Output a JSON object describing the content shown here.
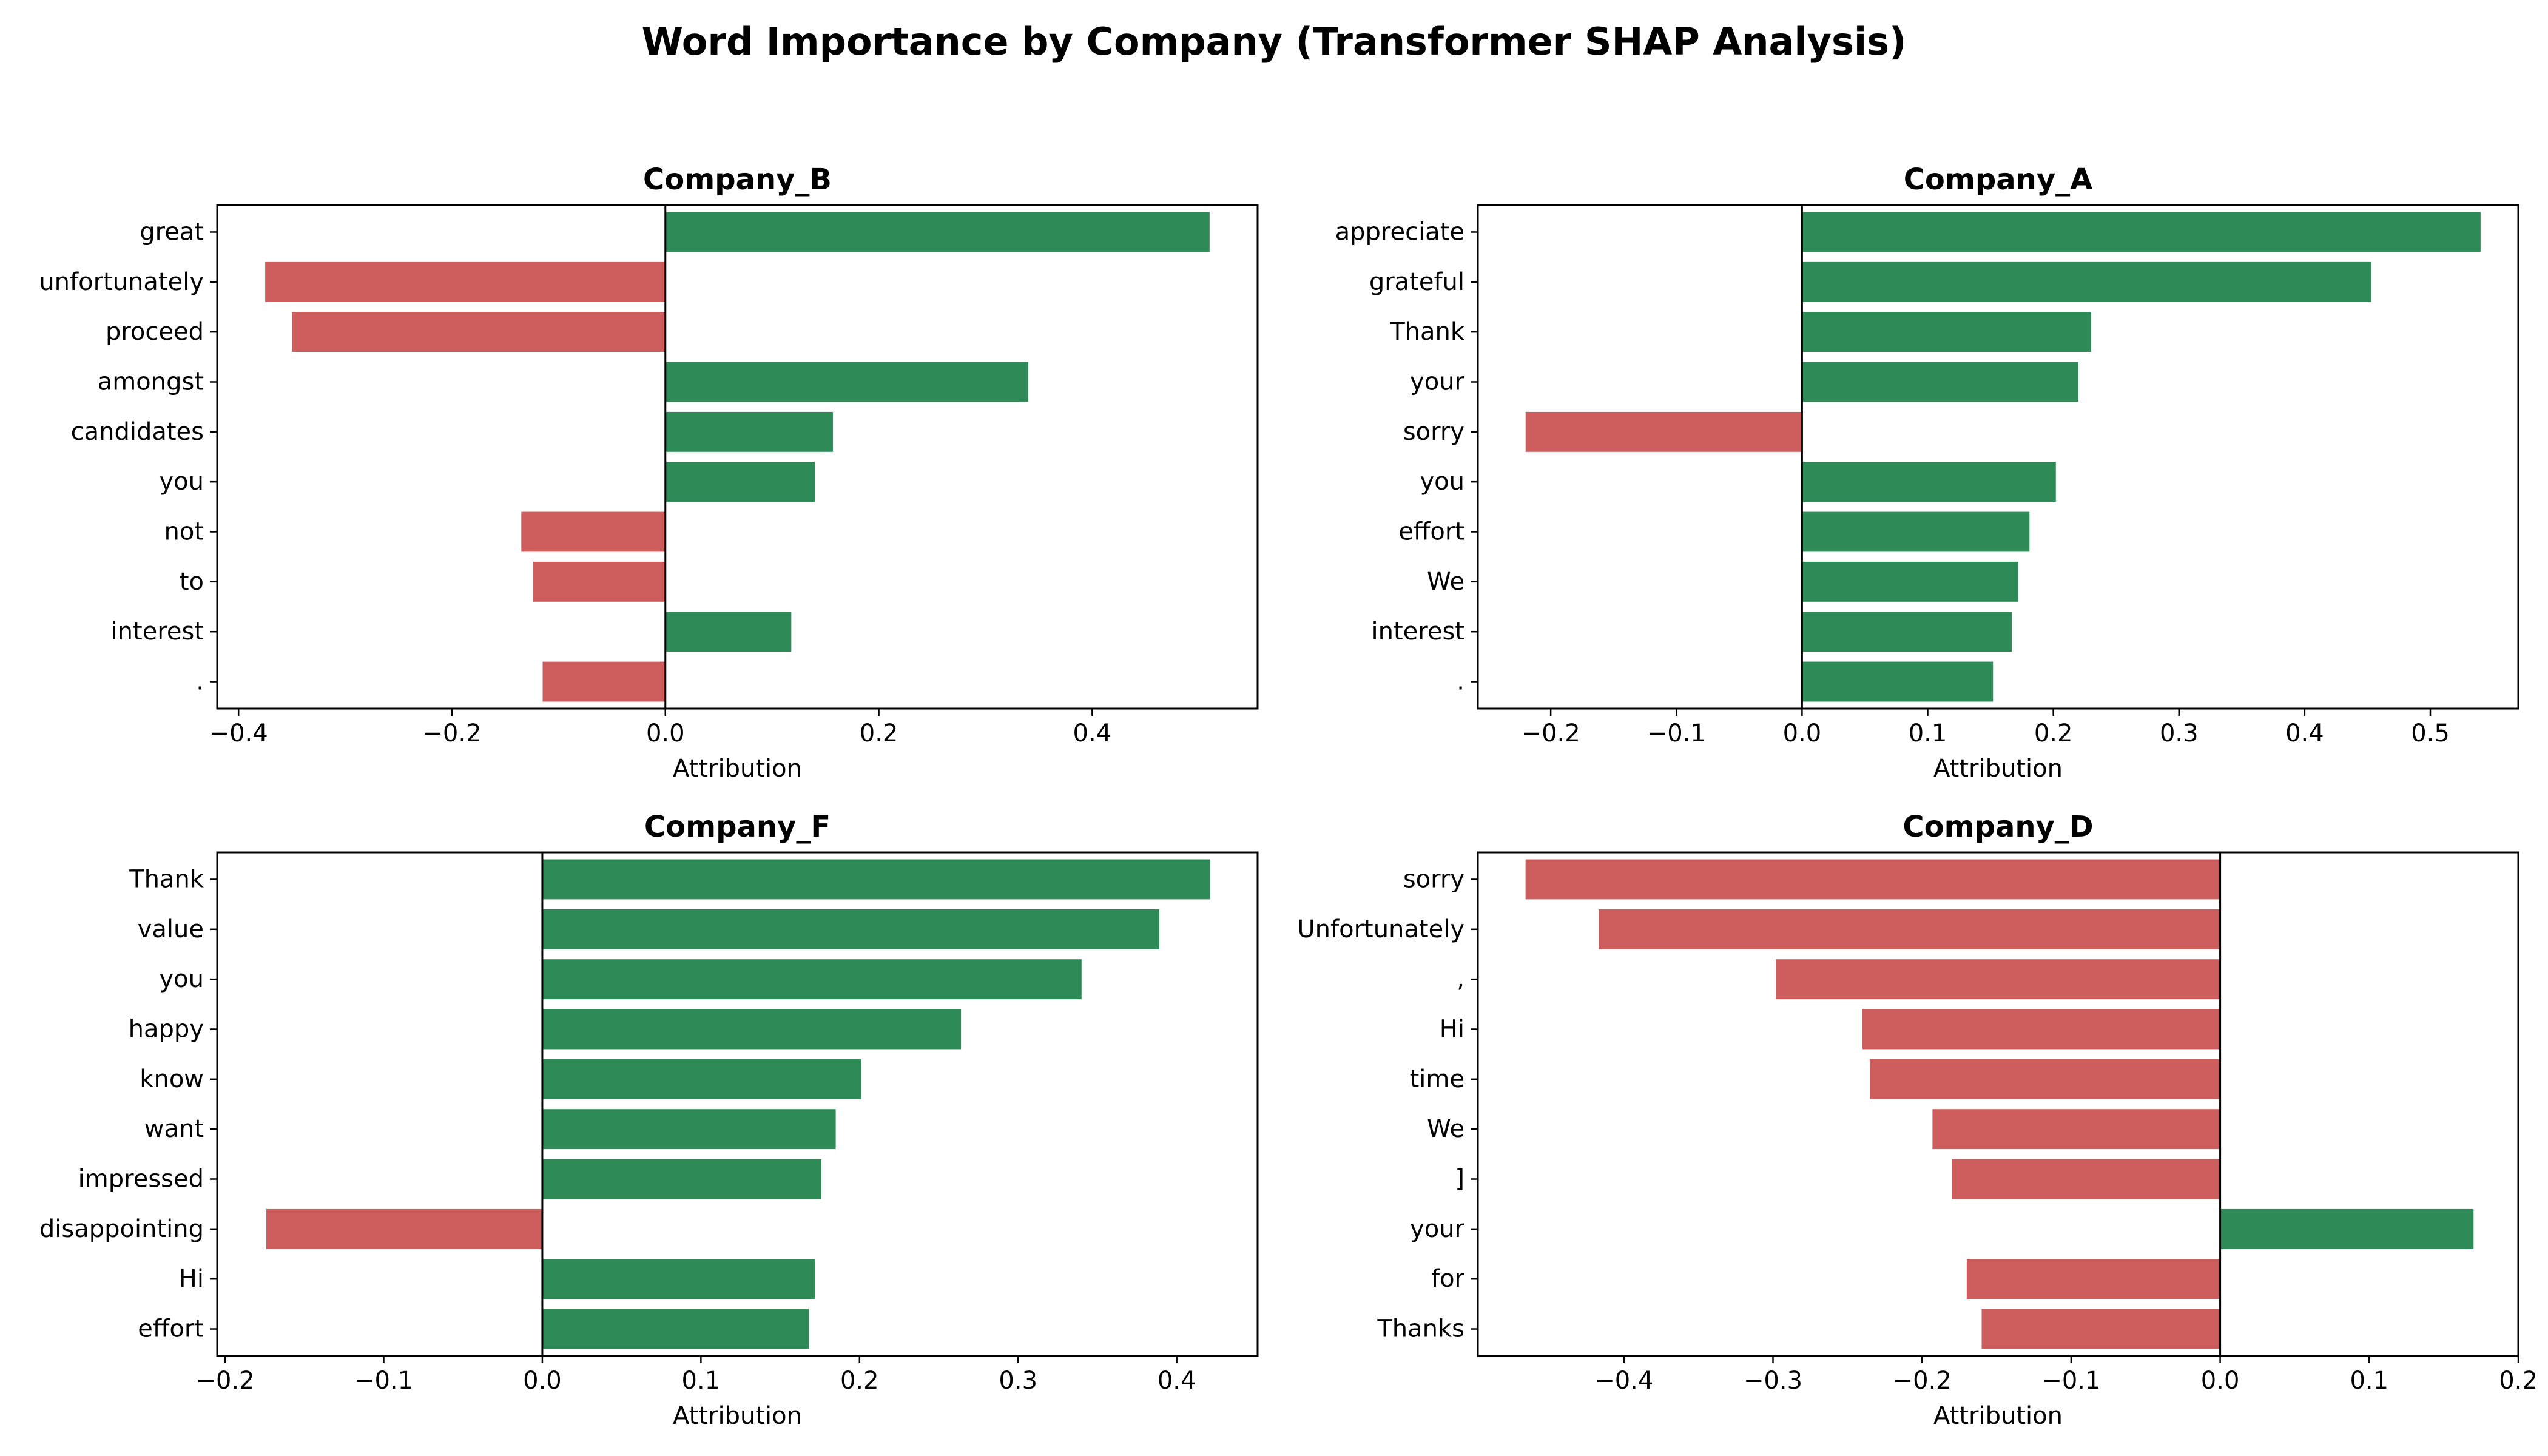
{
  "figure": {
    "title": "Word Importance by Company (Transformer SHAP Analysis)",
    "positive_color": "#2e8b57",
    "negative_color": "#cd5c5c"
  },
  "chart_data": [
    {
      "type": "bar",
      "orientation": "horizontal",
      "title": "Company_B",
      "xlabel": "Attribution",
      "ylabel": "",
      "xlim": [
        -0.42,
        0.555
      ],
      "xticks": [
        -0.4,
        -0.2,
        0.0,
        0.2,
        0.4
      ],
      "xtick_labels": [
        "−0.4",
        "−0.2",
        "0.0",
        "0.2",
        "0.4"
      ],
      "categories": [
        "great",
        "unfortunately",
        "proceed",
        "amongst",
        "candidates",
        "you",
        "not",
        "to",
        "interest",
        "."
      ],
      "values": [
        0.51,
        -0.375,
        -0.35,
        0.34,
        0.157,
        0.14,
        -0.135,
        -0.124,
        0.118,
        -0.115
      ]
    },
    {
      "type": "bar",
      "orientation": "horizontal",
      "title": "Company_A",
      "xlabel": "Attribution",
      "ylabel": "",
      "xlim": [
        -0.258,
        0.57
      ],
      "xticks": [
        -0.2,
        -0.1,
        0.0,
        0.1,
        0.2,
        0.3,
        0.4,
        0.5
      ],
      "xtick_labels": [
        "−0.2",
        "−0.1",
        "0.0",
        "0.1",
        "0.2",
        "0.3",
        "0.4",
        "0.5"
      ],
      "categories": [
        "appreciate",
        "grateful",
        "Thank",
        "your",
        "sorry",
        "you",
        "effort",
        "We",
        "interest",
        "."
      ],
      "values": [
        0.54,
        0.453,
        0.23,
        0.22,
        -0.22,
        0.202,
        0.181,
        0.172,
        0.167,
        0.152
      ]
    },
    {
      "type": "bar",
      "orientation": "horizontal",
      "title": "Company_F",
      "xlabel": "Attribution",
      "ylabel": "",
      "xlim": [
        -0.205,
        0.451
      ],
      "xticks": [
        -0.2,
        -0.1,
        0.0,
        0.1,
        0.2,
        0.3,
        0.4
      ],
      "xtick_labels": [
        "−0.2",
        "−0.1",
        "0.0",
        "0.1",
        "0.2",
        "0.3",
        "0.4"
      ],
      "categories": [
        "Thank",
        "value",
        "you",
        "happy",
        "know",
        "want",
        "impressed",
        "disappointing",
        "Hi",
        "effort"
      ],
      "values": [
        0.421,
        0.389,
        0.34,
        0.264,
        0.201,
        0.185,
        0.176,
        -0.174,
        0.172,
        0.168
      ]
    },
    {
      "type": "bar",
      "orientation": "horizontal",
      "title": "Company_D",
      "xlabel": "Attribution",
      "ylabel": "",
      "xlim": [
        -0.498,
        0.2
      ],
      "xticks": [
        -0.4,
        -0.3,
        -0.2,
        -0.1,
        0.0,
        0.1,
        0.2
      ],
      "xtick_labels": [
        "−0.4",
        "−0.3",
        "−0.2",
        "−0.1",
        "0.0",
        "0.1",
        "0.2"
      ],
      "categories": [
        "sorry",
        "Unfortunately",
        ",",
        "Hi",
        "time",
        "We",
        "]",
        "your",
        "for",
        "Thanks"
      ],
      "values": [
        -0.466,
        -0.417,
        -0.298,
        -0.24,
        -0.235,
        -0.193,
        -0.18,
        0.17,
        -0.17,
        -0.16
      ]
    }
  ]
}
